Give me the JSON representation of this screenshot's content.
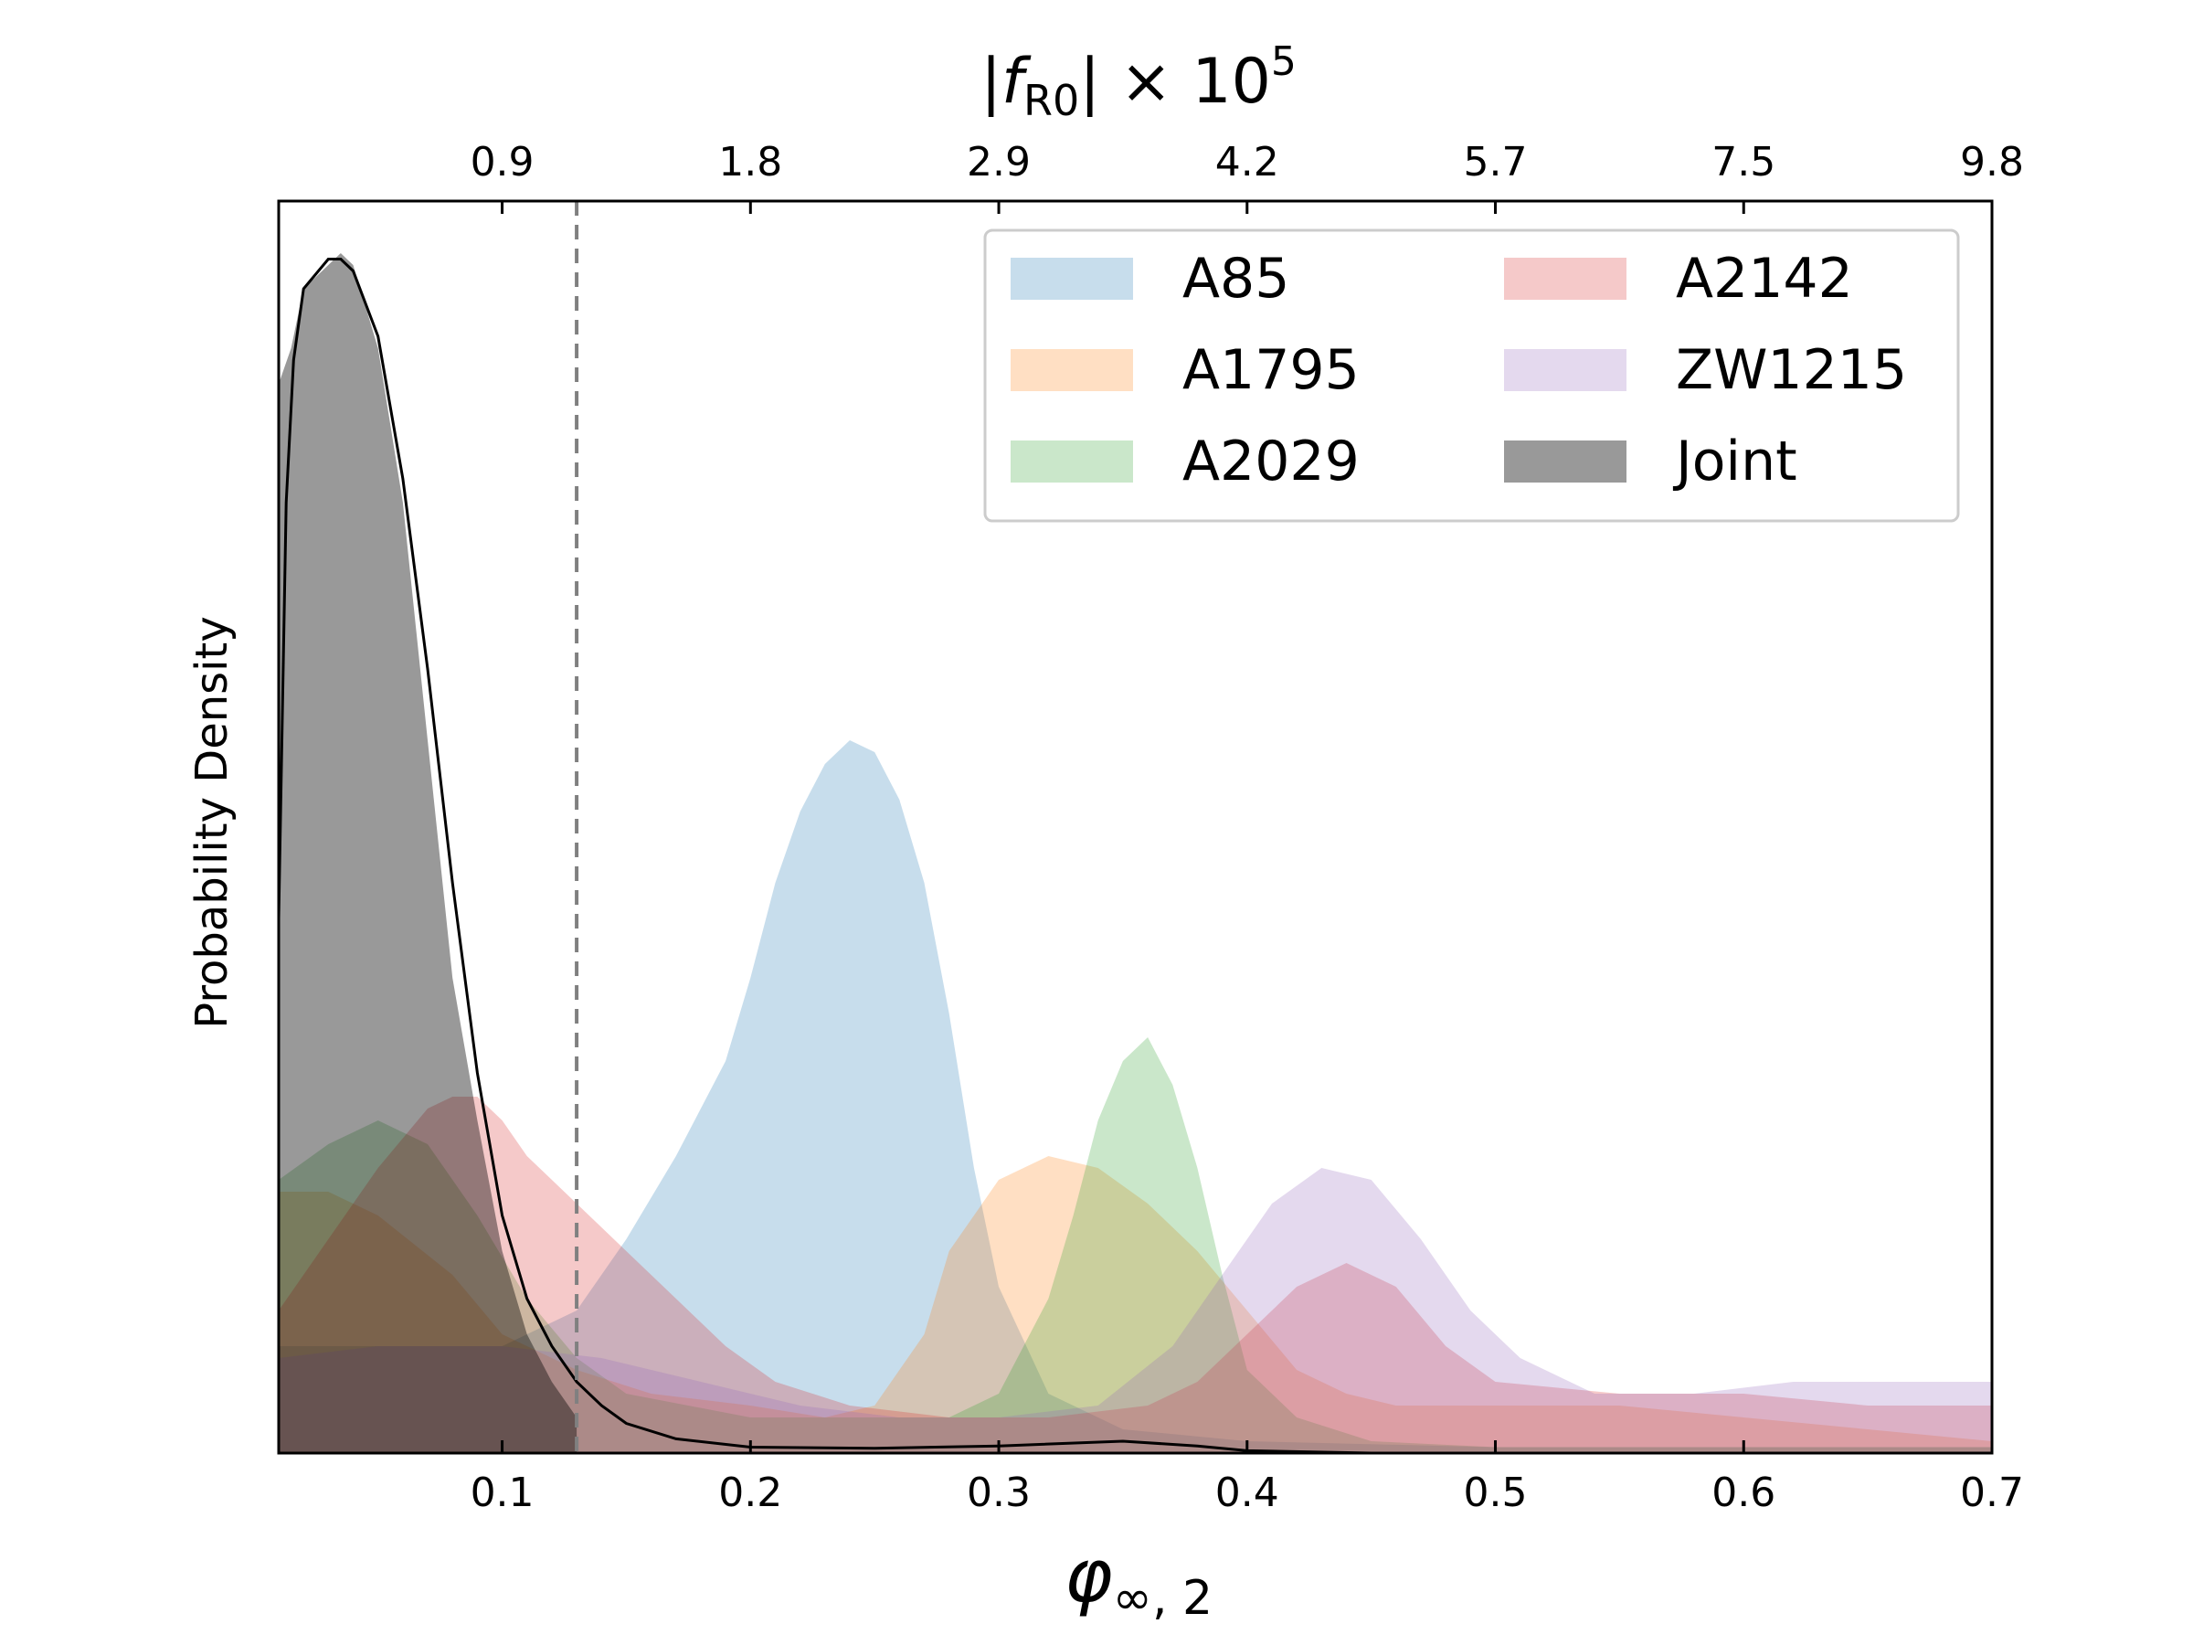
{
  "chart_data": {
    "type": "area",
    "xlabel": "φ∞,2",
    "ylabel": "Probability Density",
    "top_xlabel": "|fR0| × 10^5",
    "xlim": [
      0.01,
      0.7
    ],
    "ylim": [
      0,
      1.0
    ],
    "x_ticks": [
      "0.1",
      "0.2",
      "0.3",
      "0.4",
      "0.5",
      "0.6",
      "0.7"
    ],
    "x_tick_values": [
      0.1,
      0.2,
      0.3,
      0.4,
      0.5,
      0.6,
      0.7
    ],
    "top_ticks": [
      "0.9",
      "1.8",
      "2.9",
      "4.2",
      "5.7",
      "7.5",
      "9.8"
    ],
    "top_tick_values": [
      0.1,
      0.2,
      0.3,
      0.4,
      0.5,
      0.6,
      0.7
    ],
    "vline_x": 0.13,
    "legend_position": "upper right",
    "series": [
      {
        "name": "A85",
        "color": "#1f77b4",
        "opacity": 0.25,
        "points": [
          [
            0.01,
            0.09
          ],
          [
            0.05,
            0.09
          ],
          [
            0.1,
            0.09
          ],
          [
            0.13,
            0.12
          ],
          [
            0.15,
            0.18
          ],
          [
            0.17,
            0.25
          ],
          [
            0.19,
            0.33
          ],
          [
            0.2,
            0.4
          ],
          [
            0.21,
            0.48
          ],
          [
            0.22,
            0.54
          ],
          [
            0.23,
            0.58
          ],
          [
            0.24,
            0.6
          ],
          [
            0.25,
            0.59
          ],
          [
            0.26,
            0.55
          ],
          [
            0.27,
            0.48
          ],
          [
            0.28,
            0.37
          ],
          [
            0.29,
            0.24
          ],
          [
            0.3,
            0.14
          ],
          [
            0.32,
            0.05
          ],
          [
            0.35,
            0.02
          ],
          [
            0.4,
            0.01
          ],
          [
            0.5,
            0.005
          ],
          [
            0.7,
            0.005
          ]
        ]
      },
      {
        "name": "A1795",
        "color": "#ff7f0e",
        "opacity": 0.25,
        "points": [
          [
            0.01,
            0.22
          ],
          [
            0.03,
            0.22
          ],
          [
            0.05,
            0.2
          ],
          [
            0.08,
            0.15
          ],
          [
            0.1,
            0.1
          ],
          [
            0.13,
            0.07
          ],
          [
            0.16,
            0.05
          ],
          [
            0.2,
            0.04
          ],
          [
            0.23,
            0.03
          ],
          [
            0.25,
            0.04
          ],
          [
            0.27,
            0.1
          ],
          [
            0.28,
            0.17
          ],
          [
            0.29,
            0.2
          ],
          [
            0.3,
            0.23
          ],
          [
            0.32,
            0.25
          ],
          [
            0.34,
            0.24
          ],
          [
            0.36,
            0.21
          ],
          [
            0.38,
            0.17
          ],
          [
            0.4,
            0.12
          ],
          [
            0.42,
            0.07
          ],
          [
            0.44,
            0.05
          ],
          [
            0.46,
            0.04
          ],
          [
            0.5,
            0.04
          ],
          [
            0.55,
            0.04
          ],
          [
            0.6,
            0.03
          ],
          [
            0.65,
            0.02
          ],
          [
            0.7,
            0.01
          ]
        ]
      },
      {
        "name": "A2029",
        "color": "#2ca02c",
        "opacity": 0.25,
        "points": [
          [
            0.01,
            0.23
          ],
          [
            0.03,
            0.26
          ],
          [
            0.05,
            0.28
          ],
          [
            0.07,
            0.26
          ],
          [
            0.09,
            0.2
          ],
          [
            0.11,
            0.13
          ],
          [
            0.13,
            0.08
          ],
          [
            0.15,
            0.05
          ],
          [
            0.2,
            0.03
          ],
          [
            0.25,
            0.03
          ],
          [
            0.28,
            0.03
          ],
          [
            0.3,
            0.05
          ],
          [
            0.32,
            0.13
          ],
          [
            0.33,
            0.2
          ],
          [
            0.34,
            0.28
          ],
          [
            0.35,
            0.33
          ],
          [
            0.36,
            0.35
          ],
          [
            0.37,
            0.31
          ],
          [
            0.38,
            0.24
          ],
          [
            0.39,
            0.15
          ],
          [
            0.4,
            0.07
          ],
          [
            0.42,
            0.03
          ],
          [
            0.45,
            0.01
          ],
          [
            0.5,
            0.005
          ],
          [
            0.7,
            0.005
          ]
        ]
      },
      {
        "name": "A2142",
        "color": "#d62728",
        "opacity": 0.25,
        "points": [
          [
            0.01,
            0.12
          ],
          [
            0.03,
            0.18
          ],
          [
            0.05,
            0.24
          ],
          [
            0.07,
            0.29
          ],
          [
            0.08,
            0.3
          ],
          [
            0.09,
            0.3
          ],
          [
            0.1,
            0.28
          ],
          [
            0.11,
            0.25
          ],
          [
            0.12,
            0.23
          ],
          [
            0.13,
            0.21
          ],
          [
            0.14,
            0.19
          ],
          [
            0.15,
            0.17
          ],
          [
            0.17,
            0.13
          ],
          [
            0.19,
            0.09
          ],
          [
            0.21,
            0.06
          ],
          [
            0.24,
            0.04
          ],
          [
            0.28,
            0.03
          ],
          [
            0.32,
            0.03
          ],
          [
            0.36,
            0.04
          ],
          [
            0.38,
            0.06
          ],
          [
            0.4,
            0.1
          ],
          [
            0.42,
            0.14
          ],
          [
            0.44,
            0.16
          ],
          [
            0.46,
            0.14
          ],
          [
            0.48,
            0.09
          ],
          [
            0.5,
            0.06
          ],
          [
            0.55,
            0.05
          ],
          [
            0.6,
            0.05
          ],
          [
            0.65,
            0.04
          ],
          [
            0.7,
            0.04
          ]
        ]
      },
      {
        "name": "ZW1215",
        "color": "#9467bd",
        "opacity": 0.25,
        "points": [
          [
            0.01,
            0.08
          ],
          [
            0.05,
            0.09
          ],
          [
            0.1,
            0.09
          ],
          [
            0.14,
            0.08
          ],
          [
            0.18,
            0.06
          ],
          [
            0.22,
            0.04
          ],
          [
            0.26,
            0.03
          ],
          [
            0.3,
            0.03
          ],
          [
            0.34,
            0.04
          ],
          [
            0.37,
            0.09
          ],
          [
            0.39,
            0.15
          ],
          [
            0.41,
            0.21
          ],
          [
            0.43,
            0.24
          ],
          [
            0.45,
            0.23
          ],
          [
            0.47,
            0.18
          ],
          [
            0.49,
            0.12
          ],
          [
            0.51,
            0.08
          ],
          [
            0.54,
            0.05
          ],
          [
            0.58,
            0.05
          ],
          [
            0.62,
            0.06
          ],
          [
            0.66,
            0.06
          ],
          [
            0.7,
            0.06
          ]
        ]
      },
      {
        "name": "Joint",
        "color": "#000000",
        "opacity": 0.4,
        "points": [
          [
            0.01,
            0.9
          ],
          [
            0.015,
            0.93
          ],
          [
            0.02,
            0.98
          ],
          [
            0.03,
            1.0
          ],
          [
            0.035,
            1.01
          ],
          [
            0.04,
            1.0
          ],
          [
            0.05,
            0.93
          ],
          [
            0.06,
            0.8
          ],
          [
            0.07,
            0.6
          ],
          [
            0.08,
            0.4
          ],
          [
            0.09,
            0.28
          ],
          [
            0.1,
            0.17
          ],
          [
            0.11,
            0.1
          ],
          [
            0.12,
            0.06
          ],
          [
            0.13,
            0.03
          ],
          [
            0.13,
            0.0
          ]
        ]
      }
    ],
    "kde_line": {
      "color": "#000000",
      "points": [
        [
          0.01,
          0.45
        ],
        [
          0.013,
          0.8
        ],
        [
          0.016,
          0.92
        ],
        [
          0.02,
          0.98
        ],
        [
          0.03,
          1.005
        ],
        [
          0.035,
          1.005
        ],
        [
          0.04,
          0.995
        ],
        [
          0.05,
          0.94
        ],
        [
          0.06,
          0.82
        ],
        [
          0.07,
          0.66
        ],
        [
          0.08,
          0.48
        ],
        [
          0.09,
          0.32
        ],
        [
          0.1,
          0.2
        ],
        [
          0.11,
          0.13
        ],
        [
          0.12,
          0.09
        ],
        [
          0.13,
          0.06
        ],
        [
          0.14,
          0.04
        ],
        [
          0.15,
          0.025
        ],
        [
          0.17,
          0.012
        ],
        [
          0.2,
          0.005
        ],
        [
          0.25,
          0.004
        ],
        [
          0.3,
          0.006
        ],
        [
          0.35,
          0.01
        ],
        [
          0.38,
          0.006
        ],
        [
          0.4,
          0.002
        ],
        [
          0.45,
          0.0
        ],
        [
          0.53,
          0.0
        ]
      ]
    }
  }
}
